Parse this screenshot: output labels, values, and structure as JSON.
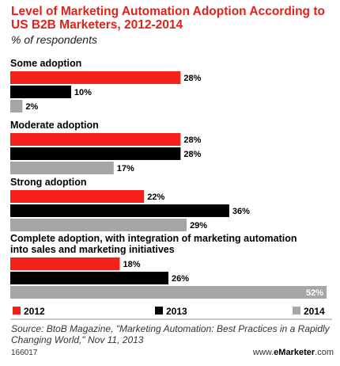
{
  "title": "Level of Marketing Automation Adoption According to US B2B Marketers, 2012-2014",
  "subtitle": "% of respondents",
  "colors": {
    "2012": "#f5201a",
    "2013": "#000000",
    "2014": "#a6a6a6",
    "title": "#e0221b"
  },
  "chart_data": {
    "type": "bar",
    "orientation": "horizontal",
    "categories": [
      "Some adoption",
      "Moderate adoption",
      "Strong adoption",
      "Complete adoption, with integration of marketing automation into sales and marketing initiatives"
    ],
    "category_lines": [
      [
        "Some adoption"
      ],
      [
        "Moderate adoption"
      ],
      [
        "Strong adoption"
      ],
      [
        "Complete adoption, with integration of marketing automation",
        "into sales and marketing initiatives"
      ]
    ],
    "series": [
      {
        "name": "2012",
        "values": [
          28,
          28,
          22,
          18
        ]
      },
      {
        "name": "2013",
        "values": [
          10,
          28,
          36,
          26
        ]
      },
      {
        "name": "2014",
        "values": [
          2,
          17,
          29,
          52
        ]
      }
    ],
    "value_suffix": "%",
    "xlim": [
      0,
      52
    ],
    "legend": [
      "2012",
      "2013",
      "2014"
    ],
    "legend_position": "bottom",
    "grid": false
  },
  "source": "Source: BtoB Magazine, \"Marketing Automation: Best Practices in a Rapidly Changing World,\" Nov 11, 2013",
  "footer": {
    "id": "166017",
    "brand_prefix": "www.",
    "brand_bold": "eMarketer",
    "brand_suffix": ".com"
  }
}
